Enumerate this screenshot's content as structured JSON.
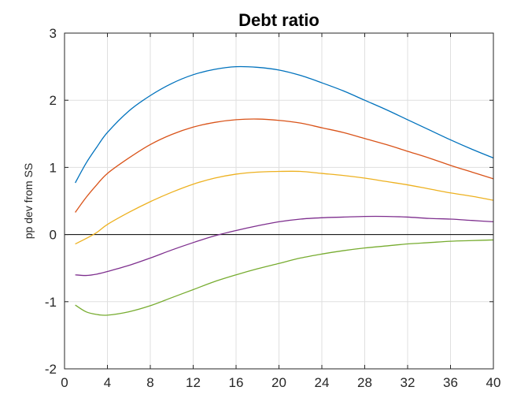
{
  "chart_data": {
    "type": "line",
    "title": "Debt ratio",
    "xlabel": "",
    "ylabel": "pp dev from SS",
    "xlim": [
      0,
      40
    ],
    "ylim": [
      -2,
      3
    ],
    "xticks": [
      0,
      4,
      8,
      12,
      16,
      20,
      24,
      28,
      32,
      36,
      40
    ],
    "yticks": [
      -2,
      -1,
      0,
      1,
      2,
      3
    ],
    "grid": true,
    "x": [
      1,
      2,
      3,
      4,
      6,
      8,
      10,
      12,
      14,
      16,
      18,
      20,
      22,
      24,
      26,
      28,
      30,
      32,
      34,
      36,
      38,
      40
    ],
    "series": [
      {
        "color": "#0072BD",
        "values": [
          0.77,
          1.06,
          1.3,
          1.52,
          1.84,
          2.07,
          2.25,
          2.38,
          2.46,
          2.5,
          2.49,
          2.45,
          2.37,
          2.26,
          2.14,
          2.0,
          1.86,
          1.71,
          1.56,
          1.41,
          1.27,
          1.14
        ]
      },
      {
        "color": "#D95319",
        "values": [
          0.33,
          0.55,
          0.74,
          0.91,
          1.14,
          1.34,
          1.49,
          1.6,
          1.67,
          1.71,
          1.72,
          1.7,
          1.66,
          1.59,
          1.52,
          1.43,
          1.34,
          1.24,
          1.14,
          1.03,
          0.93,
          0.83
        ]
      },
      {
        "color": "#EDB120",
        "values": [
          -0.14,
          -0.06,
          0.03,
          0.15,
          0.33,
          0.49,
          0.63,
          0.75,
          0.84,
          0.9,
          0.93,
          0.94,
          0.94,
          0.91,
          0.88,
          0.84,
          0.79,
          0.74,
          0.68,
          0.62,
          0.57,
          0.51
        ]
      },
      {
        "color": "#7E2F8E",
        "values": [
          -0.6,
          -0.61,
          -0.59,
          -0.55,
          -0.46,
          -0.35,
          -0.23,
          -0.12,
          -0.02,
          0.06,
          0.13,
          0.19,
          0.23,
          0.25,
          0.26,
          0.27,
          0.27,
          0.26,
          0.24,
          0.23,
          0.21,
          0.19
        ]
      },
      {
        "color": "#77AC30",
        "values": [
          -1.05,
          -1.15,
          -1.19,
          -1.2,
          -1.15,
          -1.06,
          -0.94,
          -0.82,
          -0.7,
          -0.6,
          -0.51,
          -0.43,
          -0.35,
          -0.29,
          -0.24,
          -0.2,
          -0.17,
          -0.14,
          -0.12,
          -0.1,
          -0.09,
          -0.08
        ]
      }
    ]
  }
}
